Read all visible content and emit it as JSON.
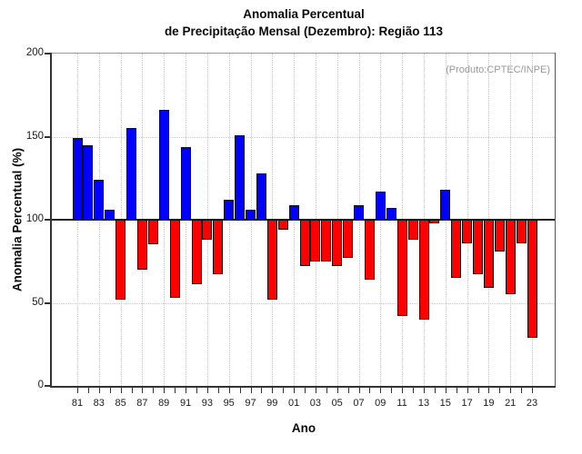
{
  "title": {
    "line1": "Anomalia Percentual",
    "line2": "de Precipitação Mensal (Dezembro): Região 113"
  },
  "annotation": "(Produto:CPTEC/INPE)",
  "chart_data": {
    "type": "bar",
    "title": "Anomalia Percentual de Precipitação Mensal (Dezembro): Região 113",
    "xlabel": "Ano",
    "ylabel": "Anomalia Percentual (%)",
    "ylim": [
      0,
      200
    ],
    "yticks": [
      0,
      50,
      100,
      150,
      200
    ],
    "ygrid": [
      50,
      100,
      150
    ],
    "baseline": 100,
    "legend": "none",
    "grid": "dotted",
    "colors": {
      "above_baseline": "#0000ff",
      "below_baseline": "#ff0000",
      "annotation": "#999999"
    },
    "categories": [
      "81",
      "82",
      "83",
      "84",
      "85",
      "86",
      "87",
      "88",
      "89",
      "90",
      "91",
      "92",
      "93",
      "94",
      "95",
      "96",
      "97",
      "98",
      "99",
      "00",
      "01",
      "02",
      "03",
      "04",
      "05",
      "06",
      "07",
      "08",
      "09",
      "10",
      "11",
      "12",
      "13",
      "14",
      "15",
      "16",
      "17",
      "18",
      "19",
      "20",
      "21",
      "22",
      "23"
    ],
    "x_tick_labels_shown": [
      "81",
      "83",
      "85",
      "87",
      "89",
      "91",
      "93",
      "95",
      "97",
      "99",
      "01",
      "03",
      "05",
      "07",
      "09",
      "11",
      "13",
      "15",
      "17",
      "19",
      "21",
      "23"
    ],
    "values": [
      149,
      145,
      124,
      106,
      52,
      155,
      70,
      85,
      166,
      53,
      144,
      61,
      88,
      67,
      112,
      151,
      106,
      128,
      52,
      94,
      109,
      72,
      75,
      75,
      72,
      77,
      109,
      64,
      117,
      107,
      42,
      88,
      40,
      98,
      118,
      65,
      86,
      67,
      59,
      81,
      55,
      86,
      29
    ]
  }
}
